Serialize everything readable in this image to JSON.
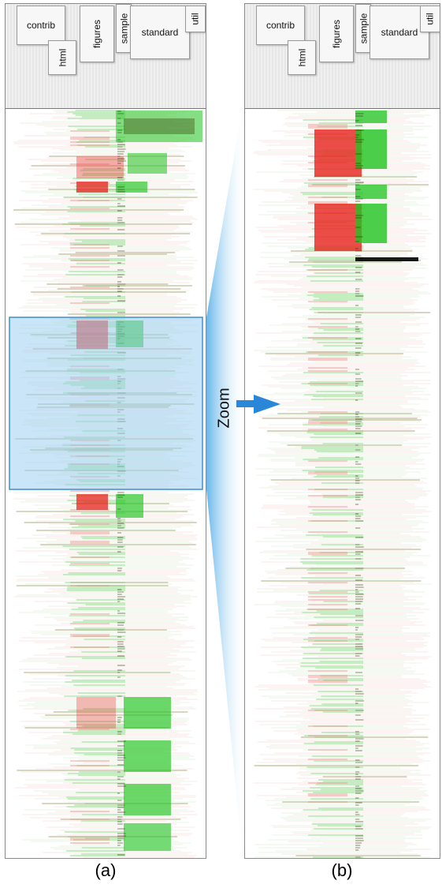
{
  "panels": {
    "a": {
      "caption": "(a)",
      "headers": [
        "contrib",
        "html",
        "figures",
        "sample",
        "standard",
        "util"
      ]
    },
    "b": {
      "caption": "(b)",
      "headers": [
        "contrib",
        "html",
        "figures",
        "sample",
        "standard",
        "util"
      ]
    }
  },
  "zoom": {
    "label": "Zoom"
  },
  "colors": {
    "green": "#1fc41f",
    "red": "#e8231e",
    "pink": "#f4b9b6",
    "light_green": "#bfe6b3",
    "olive": "#6a6a1a",
    "selection_fill": "#9cd0f0",
    "selection_border": "#3b8fd0",
    "arrow": "#2a86d6"
  }
}
